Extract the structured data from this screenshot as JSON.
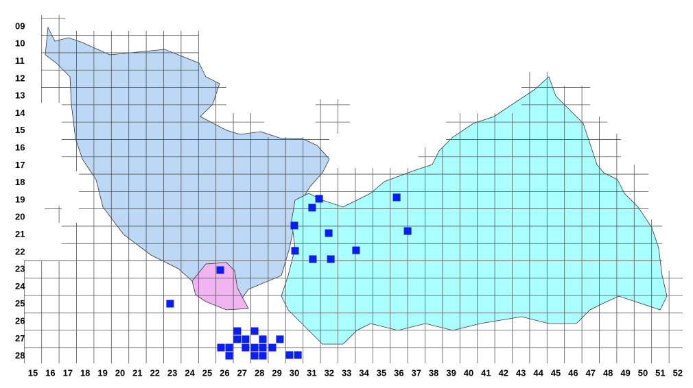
{
  "map": {
    "rows": [
      "09",
      "10",
      "11",
      "12",
      "13",
      "14",
      "15",
      "16",
      "17",
      "18",
      "19",
      "20",
      "21",
      "22",
      "23",
      "24",
      "25",
      "26",
      "27",
      "28"
    ],
    "columns": [
      "15",
      "16",
      "17",
      "18",
      "19",
      "20",
      "21",
      "22",
      "23",
      "24",
      "25",
      "26",
      "27",
      "28",
      "29",
      "30",
      "31",
      "32",
      "33",
      "34",
      "35",
      "36",
      "37",
      "38",
      "39",
      "40",
      "41",
      "42",
      "43",
      "44",
      "45",
      "46",
      "47",
      "48",
      "49",
      "50",
      "51",
      "52"
    ],
    "occurrences": [
      {
        "col": 31.42,
        "row": 18.92
      },
      {
        "col": 31.02,
        "row": 19.43
      },
      {
        "col": 30.0,
        "row": 20.46
      },
      {
        "col": 31.97,
        "row": 20.9
      },
      {
        "col": 36.5,
        "row": 20.78
      },
      {
        "col": 35.87,
        "row": 18.84
      },
      {
        "col": 30.04,
        "row": 21.92
      },
      {
        "col": 31.06,
        "row": 22.4
      },
      {
        "col": 32.09,
        "row": 22.4
      },
      {
        "col": 33.54,
        "row": 21.89
      },
      {
        "col": 25.75,
        "row": 23.03
      },
      {
        "col": 22.87,
        "row": 24.97
      },
      {
        "col": 26.73,
        "row": 26.55
      },
      {
        "col": 27.72,
        "row": 26.55
      },
      {
        "col": 26.73,
        "row": 27.02
      },
      {
        "col": 27.2,
        "row": 27.02
      },
      {
        "col": 28.19,
        "row": 27.02
      },
      {
        "col": 29.17,
        "row": 27.02
      },
      {
        "col": 25.79,
        "row": 27.5
      },
      {
        "col": 26.26,
        "row": 27.5
      },
      {
        "col": 27.2,
        "row": 27.5
      },
      {
        "col": 27.72,
        "row": 27.5
      },
      {
        "col": 28.19,
        "row": 27.5
      },
      {
        "col": 28.74,
        "row": 27.5
      },
      {
        "col": 26.26,
        "row": 27.97
      },
      {
        "col": 27.72,
        "row": 27.97
      },
      {
        "col": 28.19,
        "row": 27.97
      },
      {
        "col": 29.72,
        "row": 27.93
      },
      {
        "col": 30.2,
        "row": 27.93
      }
    ]
  }
}
